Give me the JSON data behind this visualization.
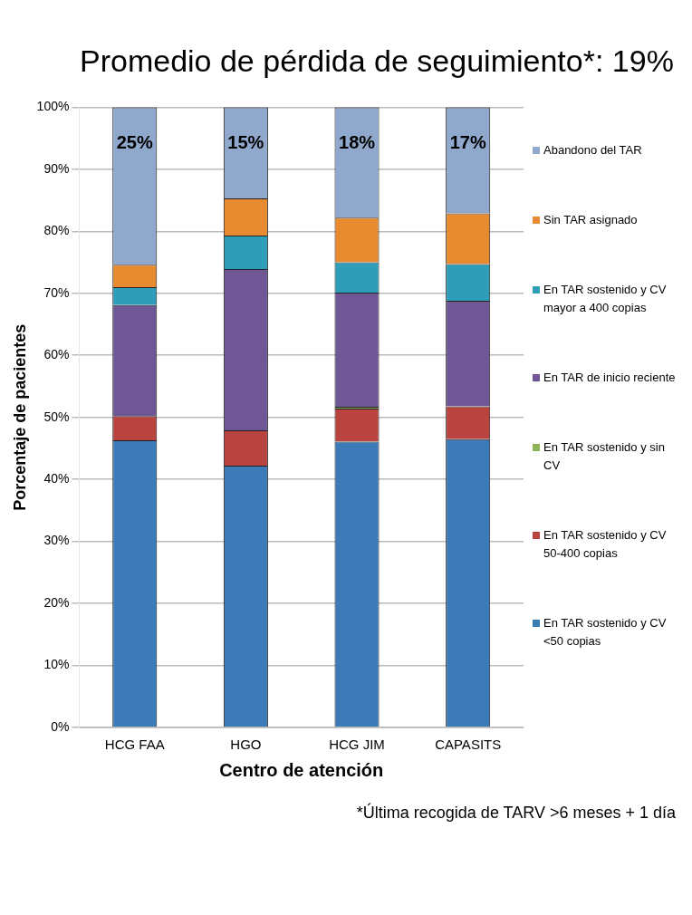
{
  "chart_data": {
    "type": "bar",
    "title": "Promedio de pérdida de seguimiento*: 19%",
    "xlabel": "Centro de atención",
    "ylabel": "Porcentaje de pacientes",
    "categories": [
      "HCG FAA",
      "HGO",
      "HCG JIM",
      "CAPASITS"
    ],
    "stacked": true,
    "ylim": [
      0,
      100
    ],
    "yticks": [
      {
        "value": 0,
        "label": "0%"
      },
      {
        "value": 10,
        "label": "10%"
      },
      {
        "value": 20,
        "label": "20%"
      },
      {
        "value": 30,
        "label": "30%"
      },
      {
        "value": 40,
        "label": "40%"
      },
      {
        "value": 50,
        "label": "50%"
      },
      {
        "value": 60,
        "label": "60%"
      },
      {
        "value": 70,
        "label": "70%"
      },
      {
        "value": 80,
        "label": "80%"
      },
      {
        "value": 90,
        "label": "90%"
      },
      {
        "value": 100,
        "label": "100%"
      }
    ],
    "grid": "y",
    "legend": "right",
    "annotations": [
      "*Última recogida de TARV >6 meses + 1 día"
    ],
    "series": [
      {
        "name": "En TAR sostenido y CV <50 copias",
        "color": "#3d7ab8",
        "values": [
          46.3,
          42.2,
          46.1,
          46.5
        ]
      },
      {
        "name": "En TAR sostenido y CV 50-400 copias",
        "color": "#b8433f",
        "values": [
          3.9,
          5.7,
          5.3,
          5.3
        ]
      },
      {
        "name": "En TAR sostenido y sin CV",
        "color": "#8db356",
        "values": [
          0,
          0,
          0.3,
          0
        ]
      },
      {
        "name": "En TAR de inicio reciente",
        "color": "#6e5794",
        "values": [
          17.9,
          26,
          18.4,
          17
        ]
      },
      {
        "name": "En TAR sostenido y CV mayor a 400 copias",
        "color": "#2f9db8",
        "values": [
          2.9,
          5.4,
          4.9,
          5.9
        ]
      },
      {
        "name": "Sin TAR asignado",
        "color": "#e88a30",
        "values": [
          3.6,
          6,
          7.2,
          8.2
        ]
      },
      {
        "name": "Abandono del TAR",
        "color": "#8fa8cc",
        "values": [
          25.4,
          14.7,
          17.8,
          17.1
        ],
        "value_labels": [
          "25%",
          "15%",
          "18%",
          "17%"
        ]
      }
    ]
  }
}
